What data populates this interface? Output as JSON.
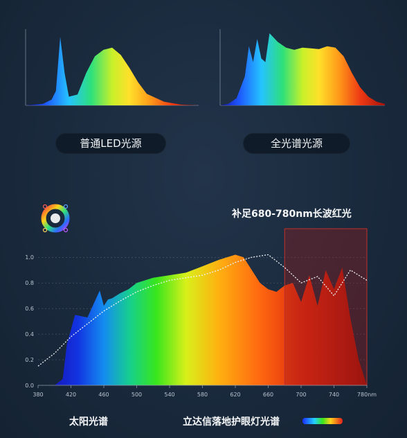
{
  "chart_data": [
    {
      "type": "area",
      "caption": "普通LED光源",
      "x": [
        380,
        420,
        440,
        450,
        460,
        470,
        480,
        500,
        520,
        540,
        560,
        580,
        600,
        620,
        640,
        660,
        700,
        740,
        780
      ],
      "y": [
        0,
        2,
        8,
        20,
        95,
        45,
        12,
        15,
        45,
        68,
        77,
        80,
        70,
        52,
        32,
        16,
        5,
        1,
        0
      ]
    },
    {
      "type": "area",
      "caption": "全光谱光源",
      "x": [
        380,
        400,
        420,
        440,
        450,
        460,
        470,
        480,
        490,
        500,
        520,
        540,
        560,
        580,
        600,
        620,
        640,
        660,
        680,
        700,
        720,
        740,
        760,
        780
      ],
      "y": [
        0,
        2,
        10,
        40,
        82,
        60,
        92,
        65,
        60,
        100,
        88,
        80,
        77,
        80,
        79,
        78,
        82,
        80,
        68,
        45,
        25,
        12,
        5,
        2
      ]
    },
    {
      "type": "area",
      "legend_items": [
        "太阳光谱",
        "立达信落地护眼灯光谱"
      ],
      "annotation": "补足680-780nm长波红光",
      "x_tick_labels": [
        "380",
        "420",
        "460",
        "500",
        "540",
        "580",
        "620",
        "660",
        "700",
        "740",
        "780nm"
      ],
      "y_tick_labels": [
        "0.0",
        "0.2",
        "0.4",
        "0.6",
        "0.8",
        "1.0"
      ],
      "xlim": [
        380,
        780
      ],
      "ylim": [
        0,
        1.05
      ],
      "highlight_range": [
        680,
        780
      ],
      "series": [
        {
          "x": [
            380,
            400,
            410,
            415,
            425,
            440,
            450,
            455,
            460,
            465,
            470,
            480,
            490,
            500,
            520,
            540,
            560,
            580,
            600,
            620,
            630,
            640,
            650,
            660,
            670,
            680,
            690,
            700,
            710,
            720,
            730,
            740,
            750,
            760,
            770,
            780
          ],
          "y": [
            0.0,
            0.0,
            0.05,
            0.32,
            0.55,
            0.53,
            0.67,
            0.74,
            0.62,
            0.67,
            0.68,
            0.72,
            0.75,
            0.8,
            0.84,
            0.86,
            0.88,
            0.93,
            0.98,
            1.02,
            1.0,
            0.9,
            0.8,
            0.75,
            0.73,
            0.78,
            0.8,
            0.65,
            0.86,
            0.62,
            0.9,
            0.75,
            0.92,
            0.52,
            0.2,
            0.0
          ]
        },
        {
          "x": [
            380,
            400,
            420,
            440,
            460,
            480,
            500,
            520,
            540,
            560,
            580,
            600,
            620,
            640,
            660,
            680,
            700,
            720,
            740,
            760,
            780
          ],
          "y": [
            0.15,
            0.25,
            0.38,
            0.48,
            0.58,
            0.66,
            0.73,
            0.78,
            0.82,
            0.84,
            0.86,
            0.9,
            0.96,
            1.0,
            1.02,
            0.92,
            0.8,
            0.85,
            0.7,
            0.9,
            0.82
          ]
        }
      ]
    }
  ]
}
